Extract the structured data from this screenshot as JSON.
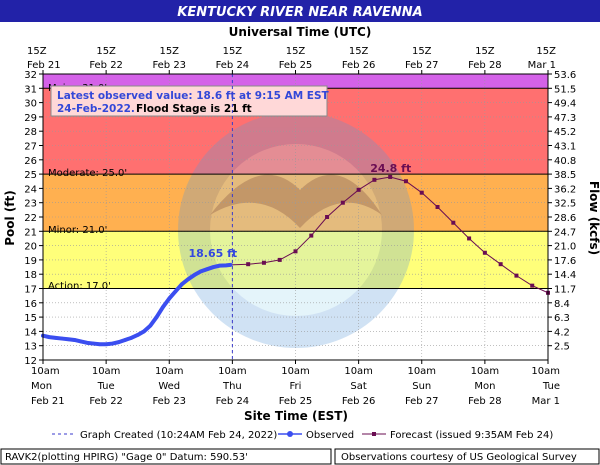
{
  "header": {
    "title": "KENTUCKY RIVER NEAR RAVENNA",
    "top_axis_label": "Universal Time (UTC)"
  },
  "info_box": {
    "line1": "Latest observed value: 18.6 ft at 9:15 AM EST",
    "line2a": "24-Feb-2022.",
    "line2b": "Flood Stage is 21 ft"
  },
  "stage_labels": {
    "major": "Major: 31.0'",
    "moderate": "Moderate: 25.0'",
    "minor": "Minor: 21.0'",
    "action": "Action: 17.0'"
  },
  "annotations": {
    "observed_last": "18.65 ft",
    "forecast_peak": "24.8 ft"
  },
  "legend": {
    "graph_created": "Graph Created (10:24AM Feb 24, 2022)",
    "observed": "Observed",
    "forecast": "Forecast (issued 9:35AM Feb 24)"
  },
  "footer": {
    "left": "RAVK2(plotting HPIRG) \"Gage 0\" Datum:  590.53'",
    "right": "Observations courtesy of US Geological Survey"
  },
  "colors": {
    "title_bg": "#2222a8",
    "major": "#d462e8",
    "moderate": "#ff7070",
    "minor": "#ffb050",
    "action": "#ffff7a",
    "observed": "#3b4ef0",
    "forecast": "#6a0d52"
  },
  "chart_data": {
    "type": "line",
    "xlabel": "Site Time (EST)",
    "ylabel": "Pool (ft)",
    "y2label": "Flow (kcfs)",
    "ylim": [
      12,
      32
    ],
    "yticks": [
      12,
      13,
      14,
      15,
      16,
      17,
      18,
      19,
      20,
      21,
      22,
      23,
      24,
      25,
      26,
      27,
      28,
      29,
      30,
      31,
      32
    ],
    "y2_ticks": [
      "2.5",
      "4.2",
      "6.3",
      "8.4",
      "11.7",
      "14.4",
      "17.6",
      "21.0",
      "24.7",
      "28.6",
      "32.5",
      "36.2",
      "38.5",
      "40.8",
      "43.1",
      "45.2",
      "47.3",
      "49.4",
      "51.5",
      "53.6"
    ],
    "y2_tick_pool": [
      13,
      14,
      15,
      16,
      17,
      18,
      19,
      20,
      21,
      22,
      23,
      24,
      25,
      26,
      27,
      28,
      29,
      30,
      31,
      32
    ],
    "x_unit": "days after Feb 21 10am EST",
    "xlim": [
      0,
      8
    ],
    "bottom_ticks": [
      {
        "l1": "10am",
        "l2": "Mon",
        "l3": "Feb 21"
      },
      {
        "l1": "10am",
        "l2": "Tue",
        "l3": "Feb 22"
      },
      {
        "l1": "10am",
        "l2": "Wed",
        "l3": "Feb 23"
      },
      {
        "l1": "10am",
        "l2": "Thu",
        "l3": "Feb 24"
      },
      {
        "l1": "10am",
        "l2": "Fri",
        "l3": "Feb 25"
      },
      {
        "l1": "10am",
        "l2": "Sat",
        "l3": "Feb 26"
      },
      {
        "l1": "10am",
        "l2": "Sun",
        "l3": "Feb 27"
      },
      {
        "l1": "10am",
        "l2": "Mon",
        "l3": "Feb 28"
      },
      {
        "l1": "10am",
        "l2": "Tue",
        "l3": "Mar 1"
      }
    ],
    "top_ticks": [
      {
        "l1": "15Z",
        "l2": "Feb 21"
      },
      {
        "l1": "15Z",
        "l2": "Feb 22"
      },
      {
        "l1": "15Z",
        "l2": "Feb 23"
      },
      {
        "l1": "15Z",
        "l2": "Feb 24"
      },
      {
        "l1": "15Z",
        "l2": "Feb 25"
      },
      {
        "l1": "15Z",
        "l2": "Feb 26"
      },
      {
        "l1": "15Z",
        "l2": "Feb 27"
      },
      {
        "l1": "15Z",
        "l2": "Feb 28"
      },
      {
        "l1": "15Z",
        "l2": "Mar 1"
      }
    ],
    "stages": {
      "action": 17,
      "minor": 21,
      "moderate": 25,
      "major": 31
    },
    "graph_created_x": 3.0,
    "series": [
      {
        "name": "Observed",
        "points": [
          [
            0,
            13.7
          ],
          [
            0.1,
            13.6
          ],
          [
            0.2,
            13.55
          ],
          [
            0.3,
            13.5
          ],
          [
            0.4,
            13.45
          ],
          [
            0.5,
            13.4
          ],
          [
            0.6,
            13.3
          ],
          [
            0.7,
            13.2
          ],
          [
            0.8,
            13.15
          ],
          [
            0.9,
            13.1
          ],
          [
            1.0,
            13.1
          ],
          [
            1.1,
            13.15
          ],
          [
            1.2,
            13.25
          ],
          [
            1.3,
            13.4
          ],
          [
            1.4,
            13.55
          ],
          [
            1.5,
            13.75
          ],
          [
            1.6,
            14.0
          ],
          [
            1.7,
            14.4
          ],
          [
            1.8,
            15.0
          ],
          [
            1.9,
            15.7
          ],
          [
            2.0,
            16.3
          ],
          [
            2.1,
            16.8
          ],
          [
            2.2,
            17.3
          ],
          [
            2.3,
            17.65
          ],
          [
            2.4,
            17.95
          ],
          [
            2.5,
            18.2
          ],
          [
            2.6,
            18.35
          ],
          [
            2.7,
            18.5
          ],
          [
            2.8,
            18.6
          ],
          [
            2.9,
            18.62
          ],
          [
            2.97,
            18.65
          ]
        ]
      },
      {
        "name": "Forecast",
        "points": [
          [
            2.97,
            18.65
          ],
          [
            3.25,
            18.7
          ],
          [
            3.5,
            18.8
          ],
          [
            3.75,
            19.0
          ],
          [
            4.0,
            19.6
          ],
          [
            4.25,
            20.7
          ],
          [
            4.5,
            22.0
          ],
          [
            4.75,
            23.0
          ],
          [
            5.0,
            23.9
          ],
          [
            5.25,
            24.6
          ],
          [
            5.5,
            24.8
          ],
          [
            5.75,
            24.5
          ],
          [
            6.0,
            23.7
          ],
          [
            6.25,
            22.7
          ],
          [
            6.5,
            21.6
          ],
          [
            6.75,
            20.5
          ],
          [
            7.0,
            19.5
          ],
          [
            7.25,
            18.7
          ],
          [
            7.5,
            17.9
          ],
          [
            7.75,
            17.2
          ],
          [
            8.0,
            16.7
          ],
          [
            8.25,
            16.3
          ],
          [
            8.5,
            16.0
          ],
          [
            8.75,
            15.8
          ],
          [
            9.0,
            15.6
          ]
        ]
      }
    ]
  }
}
